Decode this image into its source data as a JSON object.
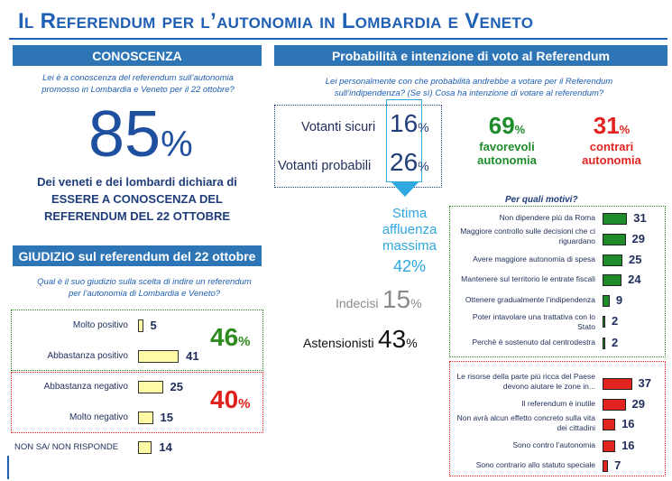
{
  "title": "Il Referendum per l’autonomia in Lombardia e Veneto",
  "conoscenza": {
    "header": "CONOSCENZA",
    "question": "Lei è a conoscenza del referendum sull’autonomia promosso in Lombardia e Veneto per il 22 ottobre?",
    "value": "85",
    "unit": "%",
    "blurb_line1": "Dei veneti e dei lombardi dichiara di",
    "blurb_line2": "ESSERE A CONOSCENZA DEL",
    "blurb_line3": "REFERENDUM DEL 22 OTTOBRE"
  },
  "giudizio": {
    "header": "GIUDIZIO sul referendum del 22 ottobre",
    "question": "Qual è il suo giudizio sulla scelta di indire un referendum per l’autonomia di Lombardia e Veneto?",
    "positive_total": "46",
    "negative_total": "40",
    "unit": "%",
    "colors": {
      "positive": "#2e8b1e",
      "negative": "#e0201b",
      "bar": "#fffaa6"
    }
  },
  "probabilita": {
    "header": "Probabilità e intenzione di voto al Referendum",
    "question": "Lei personalmente con che probabilità andrebbe a votare per il Referendum sull’indipendenza? (Se sì) Cosa ha intenzione di votare al referendum?",
    "votanti_sicuri_label": "Votanti sicuri",
    "votanti_sicuri_value": "16",
    "votanti_probabili_label": "Votanti probabili",
    "votanti_probabili_value": "26",
    "unit": "%",
    "stima_line1": "Stima",
    "stima_line2": "affluenza",
    "stima_line3": "massima",
    "stima_value": "42%",
    "indecisi_label": "Indecisi",
    "indecisi_value": "15",
    "astensionisti_label": "Astensionisti",
    "astensionisti_value": "43",
    "favorevoli_value": "69",
    "favorevoli_line1": "favorevoli",
    "favorevoli_line2": "autonomia",
    "contrari_value": "31",
    "contrari_line1": "contrari",
    "contrari_line2": "autonomia",
    "motivi_title": "Per quali motivi?"
  },
  "chart_data": [
    {
      "type": "bar",
      "categories": [
        "Molto positivo",
        "Abbastanza positivo",
        "Abbastanza negativo",
        "Molto negativo",
        "NON SA/ NON RISPONDE"
      ],
      "values": [
        5,
        41,
        25,
        15,
        14
      ]
    },
    {
      "type": "bar",
      "categories": [
        "Non dipendere più da Roma",
        "Maggiore controllo sulle decisioni che ci riguardano",
        "Avere maggiore autonomia di spesa",
        "Mantenere sul territorio le entrate fiscali",
        "Ottenere gradualmente l’indipendenza",
        "Poter intavolare una trattativa con lo Stato",
        "Perchè è sostenuto dal centrodestra"
      ],
      "values": [
        31,
        29,
        25,
        24,
        9,
        2,
        2
      ],
      "color": "#1e8c2a"
    },
    {
      "type": "bar",
      "categories": [
        "Le risorse della parte più ricca del Paese devono aiutare le zone in...",
        "Il referendum è inutile",
        "Non avrà alcun effetto concreto sulla vita dei cittadini",
        "Sono contro l’autonomia",
        "Sono contrario allo statuto speciale"
      ],
      "values": [
        37,
        29,
        16,
        16,
        7
      ],
      "color": "#e3231f"
    }
  ]
}
